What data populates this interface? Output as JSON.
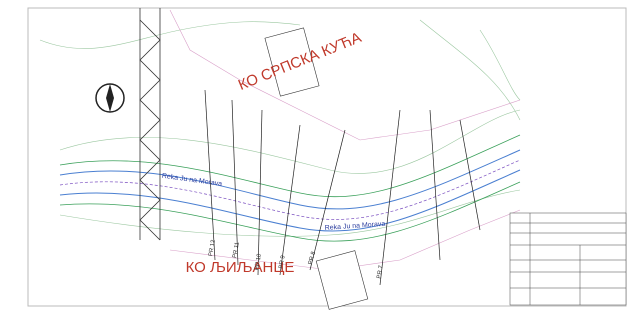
{
  "cadastral_north": "КО СРПСКА КУЋА",
  "cadastral_south": "КО ЉИЉАНЦЕ",
  "river_labels": [
    "Reka Ju na Morava",
    "Reka Ju na Morava"
  ],
  "profiles": [
    "PR 12",
    "PR 11",
    "PR 10",
    "PR 9",
    "PR 8",
    "PR 7"
  ]
}
